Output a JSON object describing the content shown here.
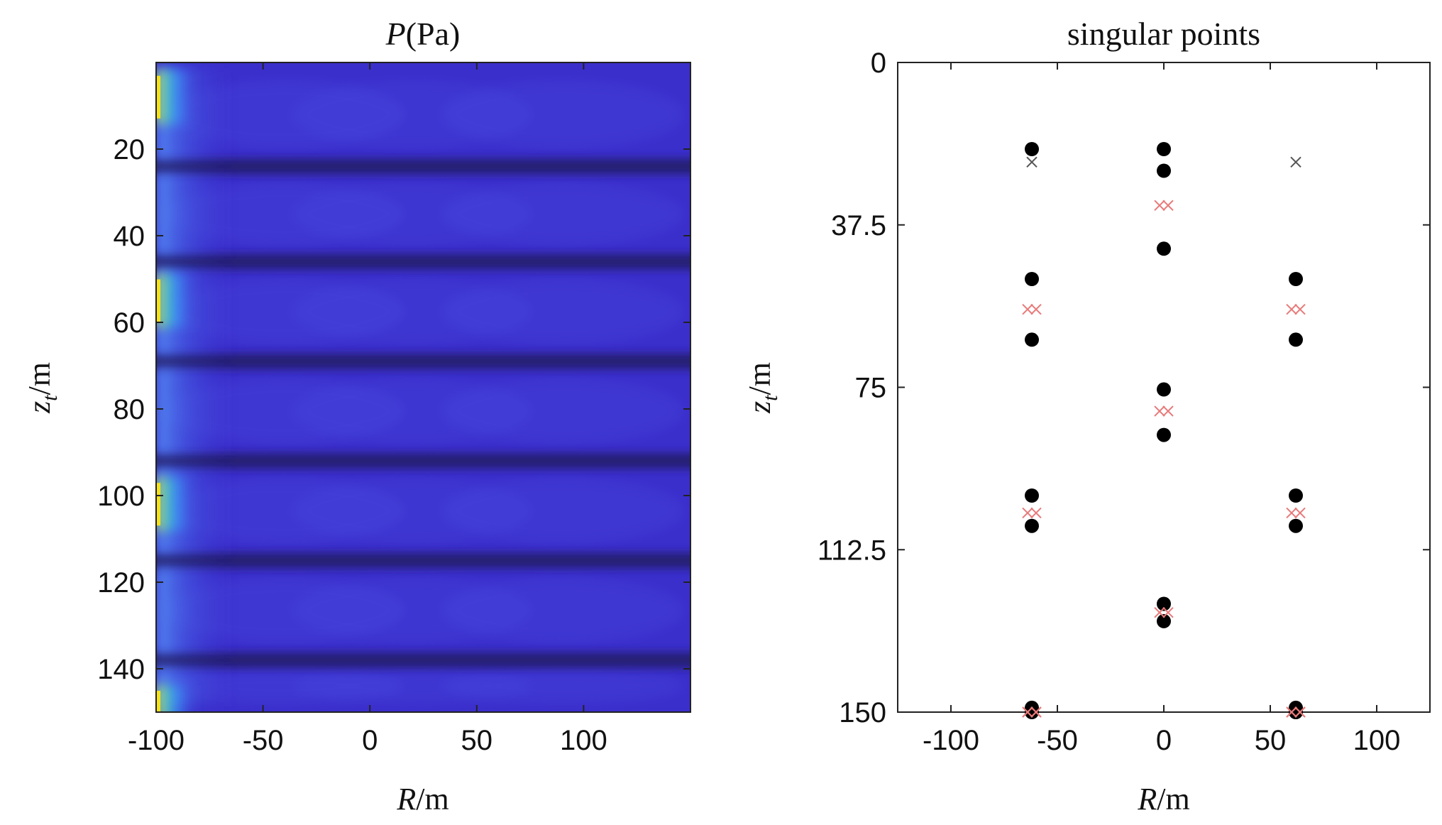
{
  "chart_data": [
    {
      "type": "heatmap",
      "title_symbol": "P",
      "title_unit": "(Pa)",
      "xlabel_symbol": "R",
      "xlabel_unit": "/m",
      "ylabel_symbol": "z",
      "ylabel_subscript": "t",
      "ylabel_unit": "/m",
      "xlim": [
        -100,
        150
      ],
      "ylim": [
        0,
        150
      ],
      "y_reversed": true,
      "xticks": [
        -100,
        -50,
        0,
        50,
        100
      ],
      "xtick_labels": [
        "-100",
        "-50",
        "0",
        "50",
        "100"
      ],
      "yticks": [
        20,
        40,
        60,
        80,
        100,
        120,
        140
      ],
      "ytick_labels": [
        "20",
        "40",
        "60",
        "80",
        "100",
        "120",
        "140"
      ],
      "colormap": "parula",
      "colors": {
        "base": "#3b2fcc",
        "dark_band": "#231a63",
        "bright_edge": "#f5e21a"
      },
      "dark_band_z": [
        24,
        46,
        69,
        92,
        115,
        138
      ],
      "bright_spot_z": [
        8,
        55,
        102,
        150
      ]
    },
    {
      "type": "scatter",
      "title": "singular points",
      "xlabel_symbol": "R",
      "xlabel_unit": "/m",
      "ylabel_symbol": "z",
      "ylabel_subscript": "t",
      "ylabel_unit": "/m",
      "xlim": [
        -125,
        125
      ],
      "ylim": [
        0,
        150
      ],
      "y_reversed": true,
      "xticks": [
        -100,
        -50,
        0,
        50,
        100
      ],
      "xtick_labels": [
        "-100",
        "-50",
        "0",
        "50",
        "100"
      ],
      "yticks": [
        0,
        37.5,
        75,
        112.5,
        150
      ],
      "ytick_labels": [
        "0",
        "37.5",
        "75",
        "112.5",
        "150"
      ],
      "grid": false,
      "colors": {
        "dots": "#000000",
        "red_crosses": "#e87a7a",
        "black_crosses": "#555555"
      },
      "series": [
        {
          "marker": "dot",
          "x": [
            -62,
            -62,
            -62,
            -62,
            -62,
            -62,
            -62,
            0,
            0,
            0,
            0,
            0,
            0,
            0,
            62,
            62,
            62,
            62,
            62,
            62,
            62
          ],
          "y": [
            20,
            50,
            64,
            100,
            107,
            149,
            150,
            25,
            43,
            75.5,
            86,
            125,
            129,
            20,
            50,
            64,
            100,
            107,
            149,
            150,
            150
          ]
        },
        {
          "marker": "x",
          "color": "red",
          "x": [
            -64,
            -60,
            -64,
            -60,
            -64,
            -60,
            -2,
            2,
            -2,
            2,
            -2,
            2,
            60,
            64,
            60,
            64,
            60,
            64,
            -64,
            -60,
            60,
            64
          ],
          "y": [
            57,
            57,
            104,
            104,
            150,
            150,
            33,
            33,
            80.5,
            80.5,
            127,
            127,
            57,
            57,
            104,
            104,
            150,
            150,
            150,
            150,
            150,
            150
          ]
        },
        {
          "marker": "x",
          "color": "black",
          "x": [
            -62,
            62
          ],
          "y": [
            23,
            23
          ]
        }
      ]
    }
  ]
}
